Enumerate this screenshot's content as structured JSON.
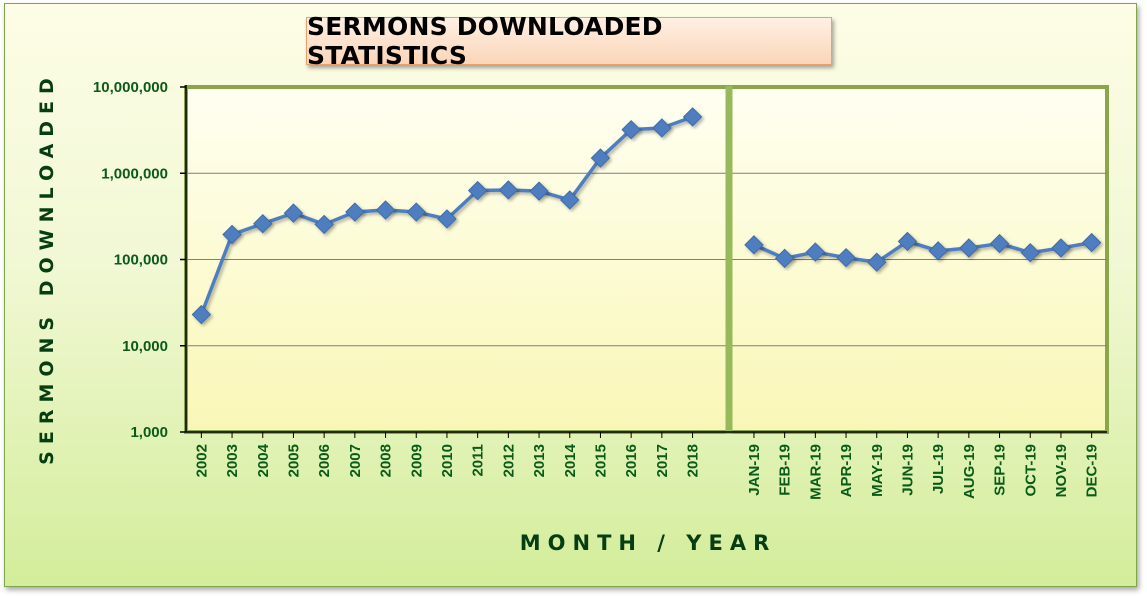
{
  "chart_data": {
    "type": "line",
    "title": "SERMONS DOWNLOADED STATISTICS",
    "xlabel": "MONTH / YEAR",
    "ylabel": "SERMONS DOWNLOADED",
    "y_scale": "log",
    "ylim": [
      1000,
      10000000
    ],
    "y_ticks": [
      "1,000",
      "10,000",
      "100,000",
      "1,000,000",
      "10,000,000"
    ],
    "y_tick_values": [
      1000,
      10000,
      100000,
      1000000,
      10000000
    ],
    "grid": true,
    "legend": "none",
    "line_color": "#4f7ec0",
    "panels": [
      {
        "categories": [
          "2002",
          "2003",
          "2004",
          "2005",
          "2006",
          "2007",
          "2008",
          "2009",
          "2010",
          "2011",
          "2012",
          "2013",
          "2014",
          "2015",
          "2016",
          "2017",
          "2018"
        ],
        "values": [
          23000,
          195000,
          260000,
          345000,
          255000,
          355000,
          375000,
          355000,
          295000,
          630000,
          640000,
          620000,
          490000,
          1500000,
          3200000,
          3350000,
          4500000
        ]
      },
      {
        "categories": [
          "JAN-19",
          "FEB-19",
          "MAR-19",
          "APR-19",
          "MAY-19",
          "JUN-19",
          "JUL-19",
          "AUG-19",
          "SEP-19",
          "OCT-19",
          "NOV-19",
          "DEC-19"
        ],
        "values": [
          148000,
          103000,
          122000,
          105000,
          93000,
          162000,
          126000,
          136000,
          153000,
          120000,
          136000,
          157000
        ]
      }
    ]
  }
}
